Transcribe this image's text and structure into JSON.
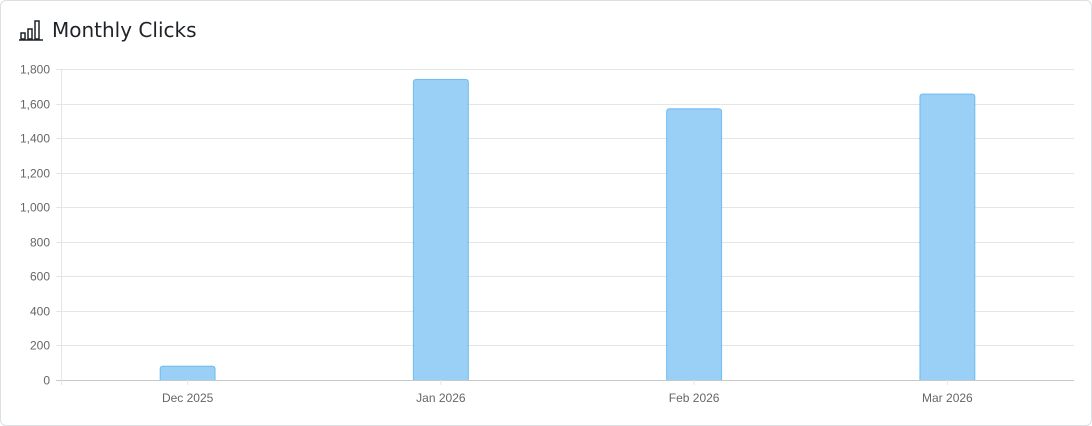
{
  "header": {
    "title": "Monthly Clicks",
    "icon": "bar-chart-icon"
  },
  "chart_data": {
    "type": "bar",
    "title": "Monthly Clicks",
    "categories": [
      "Dec 2025",
      "Jan 2026",
      "Feb 2026",
      "Mar 2026"
    ],
    "values": [
      80,
      1740,
      1570,
      1655
    ],
    "ylim": [
      0,
      1800
    ],
    "yticks": [
      0,
      200,
      400,
      600,
      800,
      1000,
      1200,
      1400,
      1600,
      1800
    ],
    "ytick_labels": [
      "0",
      "200",
      "400",
      "600",
      "800",
      "1,000",
      "1,200",
      "1,400",
      "1,600",
      "1,800"
    ],
    "xlabel": "",
    "ylabel": "",
    "grid": true,
    "bar_color": "#9ad0f5",
    "bar_border_color": "#36a2eb"
  }
}
